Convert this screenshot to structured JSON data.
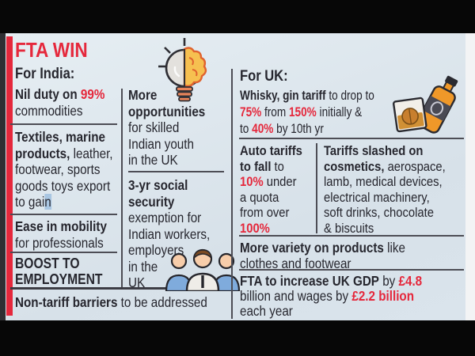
{
  "colors": {
    "accent_red": "#e5283c",
    "background": "#dce6ec",
    "text_dark": "#26262e",
    "selection_highlight": "#a9c6e2",
    "rule_grey": "#4d4d55"
  },
  "title": "FTA WIN",
  "icons": {
    "idea": "lightbulb-brain-icon",
    "drinks": "whisky-bottle-glass-icon",
    "workers": "three-workers-icon"
  },
  "india": {
    "heading": "For India:",
    "nil_duty": [
      [
        {
          "t": "Nil duty on ",
          "s": "b"
        },
        {
          "t": "99%",
          "s": "r"
        }
      ],
      [
        {
          "t": "commodities",
          "s": "n"
        }
      ]
    ],
    "textiles": [
      [
        {
          "t": "Textiles, marine",
          "s": "b"
        }
      ],
      [
        {
          "t": "products,",
          "s": "b"
        },
        {
          "t": " leather,",
          "s": "n"
        }
      ],
      [
        {
          "t": "footwear, sports",
          "s": "n"
        }
      ],
      [
        {
          "t": "goods toys export",
          "s": "n"
        }
      ],
      [
        {
          "t": "to gai",
          "s": "n"
        },
        {
          "t": "n",
          "s": "nh"
        }
      ]
    ],
    "ease": [
      [
        {
          "t": "Ease in mobility",
          "s": "b"
        }
      ],
      [
        {
          "t": "for professionals",
          "s": "n"
        }
      ]
    ],
    "boost": [
      [
        {
          "t": "BOOST TO",
          "s": "b"
        }
      ],
      [
        {
          "t": "EMPLOYMENT",
          "s": "b"
        }
      ]
    ],
    "non_tariff": [
      [
        {
          "t": "Non-tariff barriers",
          "s": "b"
        },
        {
          "t": " to be addressed",
          "s": "n"
        }
      ]
    ],
    "more_opportunities": [
      [
        {
          "t": "More",
          "s": "b"
        }
      ],
      [
        {
          "t": "opportunities",
          "s": "b"
        }
      ],
      [
        {
          "t": "for skilled",
          "s": "n"
        }
      ],
      [
        {
          "t": "Indian youth",
          "s": "n"
        }
      ],
      [
        {
          "t": "in the UK",
          "s": "n"
        }
      ]
    ],
    "social_security": [
      [
        {
          "t": "3-yr social",
          "s": "b"
        }
      ],
      [
        {
          "t": "security",
          "s": "b"
        }
      ],
      [
        {
          "t": "exemption for",
          "s": "n"
        }
      ],
      [
        {
          "t": "Indian workers,",
          "s": "n"
        }
      ],
      [
        {
          "t": "employers",
          "s": "n"
        }
      ],
      [
        {
          "t": "in the",
          "s": "n"
        }
      ],
      [
        {
          "t": "UK",
          "s": "n"
        }
      ]
    ]
  },
  "uk": {
    "heading": "For UK:",
    "whisky": [
      [
        {
          "t": "Whisky, gin tariff",
          "s": "b"
        },
        {
          "t": " to drop to",
          "s": "n"
        }
      ],
      [
        {
          "t": "75%",
          "s": "r"
        },
        {
          "t": " from ",
          "s": "n"
        },
        {
          "t": "150%",
          "s": "r"
        },
        {
          "t": " initially &",
          "s": "n"
        }
      ],
      [
        {
          "t": "to ",
          "s": "n"
        },
        {
          "t": "40%",
          "s": "r"
        },
        {
          "t": " by 10th yr",
          "s": "n"
        }
      ]
    ],
    "auto": [
      [
        {
          "t": "Auto tariffs",
          "s": "b"
        }
      ],
      [
        {
          "t": "to fall",
          "s": "b"
        },
        {
          "t": " to",
          "s": "n"
        }
      ],
      [
        {
          "t": "10%",
          "s": "r"
        },
        {
          "t": " under",
          "s": "n"
        }
      ],
      [
        {
          "t": "a quota",
          "s": "n"
        }
      ],
      [
        {
          "t": "from over",
          "s": "n"
        }
      ],
      [
        {
          "t": "100%",
          "s": "r"
        }
      ]
    ],
    "tariffs_slashed": [
      [
        {
          "t": "Tariffs slashed on",
          "s": "b"
        }
      ],
      [
        {
          "t": "cosmetics,",
          "s": "b"
        },
        {
          "t": " aerospace,",
          "s": "n"
        }
      ],
      [
        {
          "t": "lamb, medical devices,",
          "s": "n"
        }
      ],
      [
        {
          "t": "electrical machinery,",
          "s": "n"
        }
      ],
      [
        {
          "t": "soft drinks, chocolate",
          "s": "n"
        }
      ],
      [
        {
          "t": "& biscuits",
          "s": "n"
        }
      ]
    ],
    "variety": [
      [
        {
          "t": "More variety on products",
          "s": "b"
        },
        {
          "t": " like",
          "s": "n"
        }
      ],
      [
        {
          "t": "clothes and footwear",
          "s": "n"
        }
      ]
    ],
    "gdp": [
      [
        {
          "t": "FTA to increase UK GDP",
          "s": "b"
        },
        {
          "t": " by ",
          "s": "n"
        },
        {
          "t": "£4.8",
          "s": "r"
        }
      ],
      [
        {
          "t": "billion and wages by ",
          "s": "n"
        },
        {
          "t": "£2.2 billion",
          "s": "r"
        }
      ],
      [
        {
          "t": "each year",
          "s": "n"
        }
      ]
    ]
  }
}
